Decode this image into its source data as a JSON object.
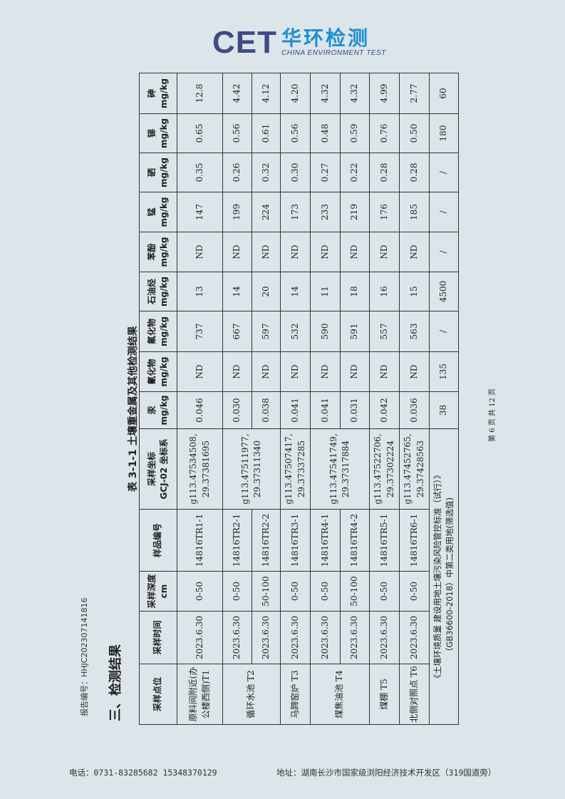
{
  "logo": {
    "cet": "CET",
    "cn": "华环检测",
    "en": "CHINA ENVIRONMENT TEST",
    "colors": {
      "cet": "#3f4a86",
      "cn": "#1c8fd0"
    }
  },
  "report_no": "报告编号：HHJC202307141816",
  "section_title": "三、检测结果",
  "table_title": "表 3-1-1 土壤重金属及其他检测结果",
  "table": {
    "headers": [
      "采样点位",
      "采样时间",
      "采样深度 cm",
      "样品编号",
      "采样坐标\nGCJ-02 坐标系",
      "汞\nmg/kg",
      "氰化物\nmg/kg",
      "氟化物\nmg/kg",
      "石油烃\nmg/kg",
      "苯酚\nmg/kg",
      "锰\nmg/kg",
      "硒\nmg/kg",
      "锑\nmg/kg",
      "砷\nmg/kg"
    ],
    "rows": [
      {
        "location": "原料间附近(办公楼西侧)T1",
        "time": "2023.6.30",
        "depth": "0-50",
        "sample": "14816TR1-1",
        "coords": "g113.47534508,\n29.37381695",
        "values": [
          "0.046",
          "ND",
          "737",
          "13",
          "ND",
          "147",
          "0.35",
          "0.65",
          "12.8"
        ]
      },
      {
        "location": "循环水池 T2",
        "time": "2023.6.30",
        "depth": "0-50",
        "sample": "14816TR2-1",
        "coords": "g113.47511977,\n29.37311340",
        "values": [
          "0.030",
          "ND",
          "667",
          "14",
          "ND",
          "199",
          "0.26",
          "0.56",
          "4.42"
        ]
      },
      {
        "location": null,
        "time": "2023.6.30",
        "depth": "50-100",
        "sample": "14816TR2-2",
        "coords": null,
        "values": [
          "0.038",
          "ND",
          "597",
          "20",
          "ND",
          "224",
          "0.32",
          "0.61",
          "4.12"
        ]
      },
      {
        "location": "马蹄窑炉 T3",
        "time": "2023.6.30",
        "depth": "0-50",
        "sample": "14816TR3-1",
        "coords": "g113.47507417,\n29.37337285",
        "values": [
          "0.041",
          "ND",
          "532",
          "14",
          "ND",
          "173",
          "0.30",
          "0.56",
          "4.20"
        ]
      },
      {
        "location": "煤焦油池 T4",
        "time": "2023.6.30",
        "depth": "0-50",
        "sample": "14816TR4-1",
        "coords": "g113.47541749,\n29.37317884",
        "values": [
          "0.041",
          "ND",
          "590",
          "11",
          "ND",
          "233",
          "0.27",
          "0.48",
          "4.32"
        ]
      },
      {
        "location": null,
        "time": "2023.6.30",
        "depth": "50-100",
        "sample": "14816TR4-2",
        "coords": null,
        "values": [
          "0.031",
          "ND",
          "591",
          "18",
          "ND",
          "219",
          "0.22",
          "0.59",
          "4.32"
        ]
      },
      {
        "location": "煤棚 T5",
        "time": "2023.6.30",
        "depth": "0-50",
        "sample": "14816TR5-1",
        "coords": "g113.47522706,\n29.37302224",
        "values": [
          "0.042",
          "ND",
          "557",
          "16",
          "ND",
          "176",
          "0.28",
          "0.76",
          "4.99"
        ]
      },
      {
        "location": "北侧对照点 T6",
        "time": "2023.6.30",
        "depth": "0-50",
        "sample": "14816TR6-1",
        "coords": "g113.47452765,\n29.37428563",
        "values": [
          "0.036",
          "ND",
          "563",
          "15",
          "ND",
          "185",
          "0.28",
          "0.50",
          "2.77"
        ]
      }
    ],
    "standard": {
      "label": "《土壤环境质量  建设用地土壤污染风险管控标准（试行）》\n（GB36600-2018）中第二类用地(筛选值)",
      "values": [
        "38",
        "135",
        "/",
        "4500",
        "/",
        "/",
        "/",
        "180",
        "60"
      ]
    }
  },
  "page_no": "第 6 页 共 12 页",
  "footer": {
    "tel": "电话：0731-83285682   15348370129",
    "address": "地址：湖南长沙市国家级浏阳经济技术开发区（319国道旁）"
  }
}
